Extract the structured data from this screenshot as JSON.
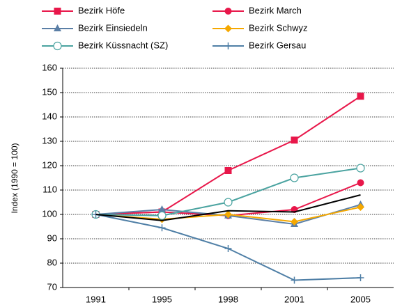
{
  "chart_data": {
    "type": "line",
    "y_label": "Index (1990 = 100)",
    "categories": [
      "1991",
      "1995",
      "1998",
      "2001",
      "2005"
    ],
    "series": [
      {
        "name": "Bezirk Höfe",
        "color": "#e8174a",
        "marker": "square",
        "values": [
          100,
          101,
          118,
          130.5,
          148.5
        ]
      },
      {
        "name": "Bezirk March",
        "color": "#e8174a",
        "marker": "circle",
        "values": [
          100,
          101,
          99.5,
          102,
          113
        ]
      },
      {
        "name": "Bezirk Einsiedeln",
        "color": "#5b7fa6",
        "marker": "triangle",
        "values": [
          100,
          102,
          99.5,
          96,
          104
        ]
      },
      {
        "name": "Bezirk Schwyz",
        "color": "#f5a800",
        "marker": "diamond",
        "values": [
          100,
          98,
          100,
          97,
          103
        ]
      },
      {
        "name": "Bezirk Küssnacht (SZ)",
        "color": "#4aa3a0",
        "marker": "open-circle",
        "values": [
          100,
          99.5,
          105,
          115,
          119
        ]
      },
      {
        "name": "Bezirk Gersau",
        "color": "#4f7fa6",
        "marker": "plus",
        "values": [
          100,
          94.5,
          86,
          73,
          74
        ]
      },
      {
        "color": "#000000",
        "marker": "none",
        "values": [
          100,
          97.5,
          101.5,
          101,
          108
        ]
      }
    ],
    "ylim": [
      70,
      160
    ],
    "yticks": [
      70,
      80,
      90,
      100,
      110,
      120,
      130,
      140,
      150,
      160
    ],
    "grid": true
  }
}
